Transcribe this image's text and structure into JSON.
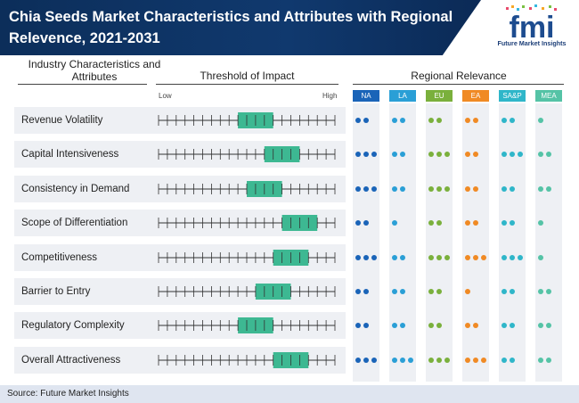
{
  "header": {
    "title_line1": "Chia Seeds Market Characteristics and Attributes with Regional",
    "title_line2": "Relevence, 2021-2031",
    "logo_text": "fmi",
    "logo_sub": "Future Market Insights"
  },
  "columns": {
    "industry": "Industry Characteristics and Attributes",
    "threshold": "Threshold of Impact",
    "regional": "Regional Relevance",
    "low": "Low",
    "high": "High"
  },
  "colors": {
    "title_bg": "#0c2e5a",
    "impact_box": "#3db892",
    "NA": "#1a64b8",
    "LA": "#2a9fd6",
    "EU": "#7ab03c",
    "EA": "#f08a24",
    "SA&P": "#2fb6c9",
    "MEA": "#55c3a6"
  },
  "chart_data": {
    "type": "table",
    "scale_ticks": 21,
    "regions": [
      "NA",
      "LA",
      "EU",
      "EA",
      "SA&P",
      "MEA"
    ],
    "rows": [
      {
        "label": "Revenue Volatility",
        "impact_start": 9,
        "impact_end": 13,
        "regional": [
          2,
          2,
          2,
          2,
          2,
          1
        ]
      },
      {
        "label": "Capital Intensiveness",
        "impact_start": 12,
        "impact_end": 16,
        "regional": [
          3,
          2,
          3,
          2,
          3,
          2
        ]
      },
      {
        "label": "Consistency in Demand",
        "impact_start": 10,
        "impact_end": 14,
        "regional": [
          3,
          2,
          3,
          2,
          2,
          2
        ]
      },
      {
        "label": "Scope of Differentiation",
        "impact_start": 14,
        "impact_end": 18,
        "regional": [
          2,
          1,
          2,
          2,
          2,
          1
        ]
      },
      {
        "label": "Competitiveness",
        "impact_start": 13,
        "impact_end": 17,
        "regional": [
          3,
          2,
          3,
          3,
          3,
          1
        ]
      },
      {
        "label": "Barrier to Entry",
        "impact_start": 11,
        "impact_end": 15,
        "regional": [
          2,
          2,
          2,
          1,
          2,
          2
        ]
      },
      {
        "label": "Regulatory Complexity",
        "impact_start": 9,
        "impact_end": 13,
        "regional": [
          2,
          2,
          2,
          2,
          2,
          2
        ]
      },
      {
        "label": "Overall Attractiveness",
        "impact_start": 13,
        "impact_end": 17,
        "regional": [
          3,
          3,
          3,
          3,
          2,
          2
        ]
      }
    ]
  },
  "footer": {
    "source": "Source: Future Market Insights"
  }
}
